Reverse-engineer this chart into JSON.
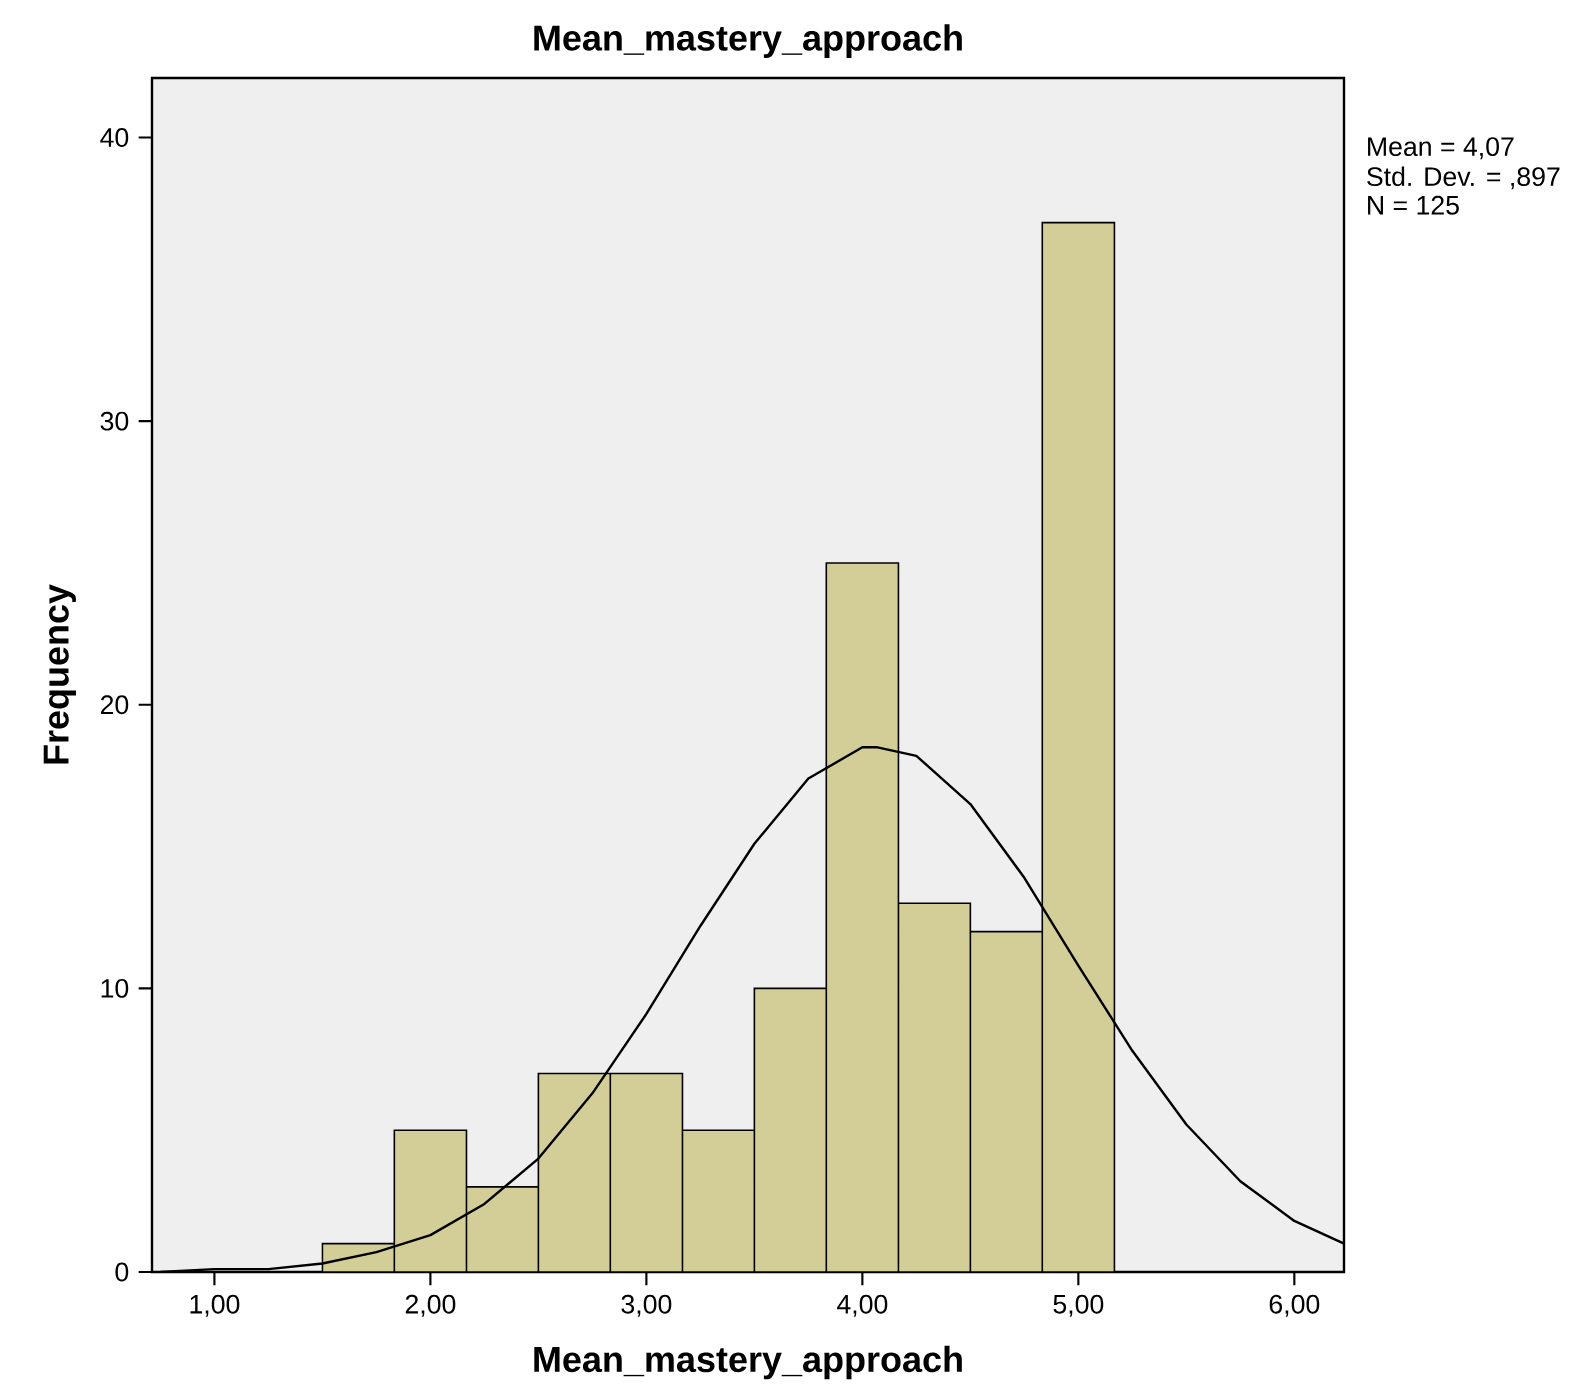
{
  "chart_data": {
    "type": "histogram",
    "title": "Mean_mastery_approach",
    "xlabel": "Mean_mastery_approach",
    "ylabel": "Frequency",
    "bins": [
      1.5,
      1.833,
      2.167,
      2.5,
      2.833,
      3.167,
      3.5,
      3.833,
      4.167,
      4.5,
      4.833,
      5.167
    ],
    "values": [
      1,
      5,
      3,
      7,
      7,
      5,
      10,
      25,
      13,
      12,
      37
    ],
    "color": "#d3ce97",
    "series": [
      {
        "type": "line",
        "color": "#000000",
        "x": [
          0.75,
          1.0,
          1.25,
          1.5,
          1.75,
          2.0,
          2.25,
          2.5,
          2.75,
          3.0,
          3.25,
          3.5,
          3.75,
          4.0,
          4.07,
          4.25,
          4.5,
          4.75,
          5.0,
          5.25,
          5.5,
          5.75,
          6.0,
          6.23
        ],
        "values": [
          0.0,
          0.1,
          0.1,
          0.3,
          0.7,
          1.3,
          2.4,
          4.0,
          6.3,
          9.1,
          12.2,
          15.1,
          17.4,
          18.5,
          18.5,
          18.2,
          16.5,
          13.9,
          10.8,
          7.8,
          5.2,
          3.2,
          1.8,
          1.0
        ]
      }
    ],
    "marker": "none",
    "xlim": [
      0.711,
      6.23
    ],
    "ylim": [
      0,
      42.1
    ],
    "xticks": [
      {
        "value": 1,
        "label": "1,00"
      },
      {
        "value": 2,
        "label": "2,00"
      },
      {
        "value": 3,
        "label": "3,00"
      },
      {
        "value": 4,
        "label": "4,00"
      },
      {
        "value": 5,
        "label": "5,00"
      },
      {
        "value": 6,
        "label": "6,00"
      }
    ],
    "yticks": [
      0,
      10,
      20,
      30,
      40
    ],
    "annotations": [
      "Mean = 4,07",
      "Std. Dev. = ,897",
      "N = 125"
    ]
  }
}
